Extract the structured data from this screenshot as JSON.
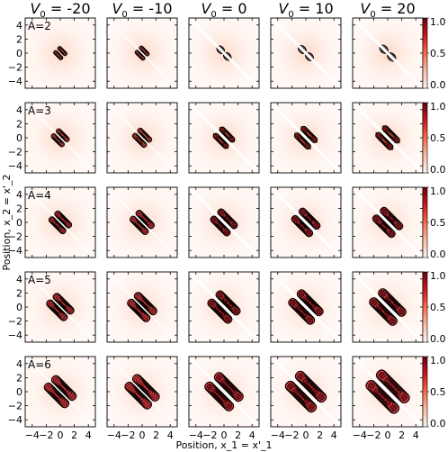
{
  "chart_data": {
    "type": "heatmap",
    "column_titles": [
      "V_0 = -20",
      "V_0 = -10",
      "V_0 = 0",
      "V_0 = 10",
      "V_0 = 20"
    ],
    "V0_values": [
      -20,
      -10,
      0,
      10,
      20
    ],
    "row_labels": [
      "A=2",
      "A=3",
      "A=4",
      "A=5",
      "A=6"
    ],
    "A_values": [
      2,
      3,
      4,
      5,
      6
    ],
    "xlabel": "Position, x_1 = x'_1",
    "ylabel": "Position, x_2 = x'_2",
    "xlim": [
      -5,
      5
    ],
    "ylim": [
      -5,
      5
    ],
    "x_ticks": [
      "−4",
      "−2",
      "0",
      "2",
      "4"
    ],
    "y_ticks": [
      "4",
      "2",
      "0",
      "−2",
      "−4"
    ],
    "colorbar_ticks": [
      "0.0",
      "0.5",
      "1.0"
    ],
    "colorbar_range": [
      0,
      1
    ],
    "colormap": "Reds",
    "contour_color": "#000000",
    "grid": false
  }
}
